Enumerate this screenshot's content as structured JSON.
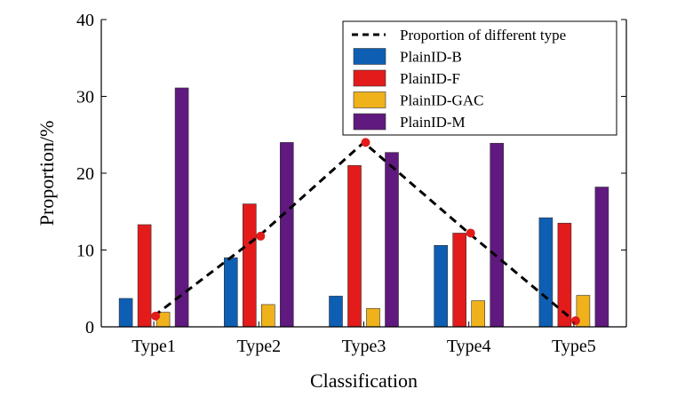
{
  "chart_data": {
    "type": "bar",
    "title": "",
    "xlabel": "Classification",
    "ylabel": "Proportion/%",
    "ylim": [
      0,
      40
    ],
    "yticks": [
      0,
      10,
      20,
      30,
      40
    ],
    "grid": false,
    "legend_position": "top-right",
    "categories": [
      "Type1",
      "Type2",
      "Type3",
      "Type4",
      "Type5"
    ],
    "series": [
      {
        "name": "PlainID-B",
        "color": "#0e5fb3",
        "values": [
          3.7,
          9.0,
          4.0,
          10.6,
          14.2
        ]
      },
      {
        "name": "PlainID-F",
        "color": "#e31b1b",
        "values": [
          13.3,
          16.0,
          21.0,
          12.2,
          13.5
        ]
      },
      {
        "name": "PlainID-GAC",
        "color": "#f0b21a",
        "values": [
          1.9,
          2.9,
          2.4,
          3.4,
          4.1
        ]
      },
      {
        "name": "PlainID-M",
        "color": "#60197f",
        "values": [
          31.1,
          24.0,
          22.7,
          23.9,
          18.2
        ]
      }
    ],
    "line": {
      "name": "Proportion of different type",
      "style": "dashed",
      "color": "#000000",
      "marker_color": "#e31b1b",
      "values": [
        1.4,
        11.8,
        24.0,
        12.2,
        0.8
      ]
    }
  }
}
